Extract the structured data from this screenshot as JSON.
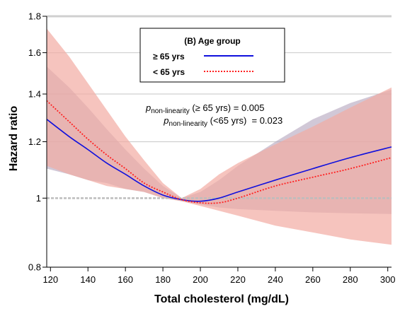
{
  "chart_data": {
    "type": "line",
    "xlabel": "Total cholesterol (mg/dL)",
    "ylabel": "Hazard ratio",
    "xlim": [
      118,
      302
    ],
    "ylim": [
      0.8,
      1.8
    ],
    "yscale": "log",
    "xticks": [
      120,
      140,
      160,
      180,
      200,
      220,
      240,
      260,
      280,
      300
    ],
    "xtick_labels": [
      "120",
      "140",
      "160",
      "180",
      "200",
      "220",
      "240",
      "260",
      "280",
      "300"
    ],
    "yticks": [
      0.8,
      1.0,
      1.2,
      1.4,
      1.6,
      1.8
    ],
    "ytick_labels": [
      "0.8",
      "1",
      "1.2",
      "1.4",
      "1.6",
      "1.8"
    ],
    "grid": "horizontal",
    "reference_line": 1.0,
    "legend": {
      "title": "(B) Age group",
      "placement": "top-center"
    },
    "annotations": [
      {
        "p": "p",
        "sub": "non-linearity",
        "text": " (≥ 65 yrs) = 0.005"
      },
      {
        "p": "p",
        "sub": "non-linearity",
        "text": " (<65 yrs)  = 0.023"
      }
    ],
    "series": [
      {
        "name": "≥ 65 yrs",
        "color": "#1010dd",
        "line_style": "solid",
        "band_color": "#b3a3bd",
        "x": [
          118,
          130,
          140,
          150,
          160,
          170,
          180,
          190,
          200,
          210,
          220,
          240,
          260,
          280,
          302
        ],
        "y": [
          1.29,
          1.22,
          1.17,
          1.12,
          1.08,
          1.04,
          1.01,
          0.995,
          0.99,
          1.0,
          1.02,
          1.06,
          1.1,
          1.14,
          1.18
        ],
        "lower": [
          1.1,
          1.08,
          1.06,
          1.05,
          1.03,
          1.02,
          1.0,
          0.99,
          0.98,
          0.97,
          0.965,
          0.96,
          0.955,
          0.952,
          0.95
        ],
        "upper": [
          1.53,
          1.43,
          1.34,
          1.25,
          1.17,
          1.1,
          1.04,
          1.0,
          1.02,
          1.06,
          1.11,
          1.2,
          1.29,
          1.36,
          1.42
        ]
      },
      {
        "name": "< 65 yrs",
        "color": "#ff2020",
        "line_style": "dotted",
        "band_color": "#f2aba2",
        "x": [
          118,
          130,
          140,
          150,
          160,
          170,
          180,
          190,
          200,
          210,
          220,
          240,
          260,
          280,
          302
        ],
        "y": [
          1.37,
          1.28,
          1.21,
          1.15,
          1.1,
          1.05,
          1.02,
          0.995,
          0.985,
          0.985,
          1.0,
          1.04,
          1.07,
          1.1,
          1.14
        ],
        "lower": [
          1.11,
          1.08,
          1.06,
          1.04,
          1.03,
          1.02,
          1.0,
          0.99,
          0.975,
          0.96,
          0.945,
          0.915,
          0.895,
          0.875,
          0.86
        ],
        "upper": [
          1.73,
          1.58,
          1.45,
          1.33,
          1.22,
          1.13,
          1.05,
          1.0,
          1.03,
          1.08,
          1.12,
          1.19,
          1.26,
          1.34,
          1.43
        ]
      }
    ]
  }
}
